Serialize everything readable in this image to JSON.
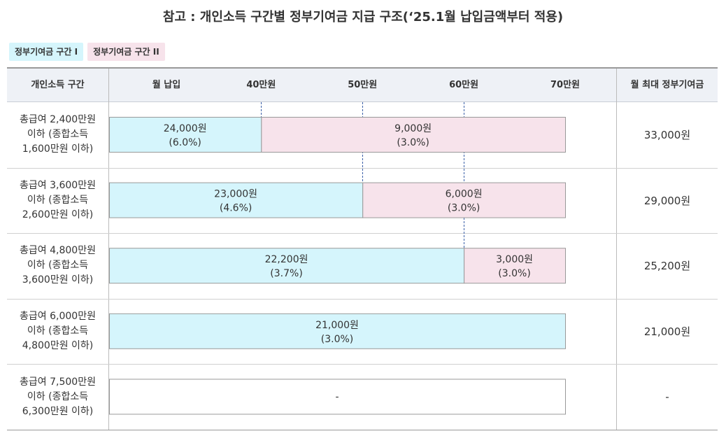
{
  "title": "참고 : 개인소득 구간별 정부기여금 지급 구조(‘25.1월 납입금액부터 적용)",
  "colors": {
    "tier1": "#d5f5fc",
    "tier2": "#f7e3eb",
    "none": "#ffffff",
    "border": "#999999"
  },
  "legend": [
    {
      "label": "정부기여금 구간 I",
      "color": "#d5f5fc"
    },
    {
      "label": "정부기여금 구간 II",
      "color": "#f7e3eb"
    }
  ],
  "header": {
    "income_band": "개인소득 구간",
    "monthly_payment": "월 납입",
    "max_contribution": "월 최대 정부기여금"
  },
  "chart_data": {
    "type": "bar",
    "title": "참고 : 개인소득 구간별 정부기여금 지급 구조(‘25.1월 납입금액부터 적용)",
    "xlabel": "월 납입",
    "ylabel": "개인소득 구간",
    "xlim": [
      25,
      70
    ],
    "xticks": [
      40,
      50,
      60,
      70
    ],
    "xtick_labels": [
      "40만원",
      "50만원",
      "60만원",
      "70만원"
    ],
    "rows": [
      {
        "label": "총급여 2,400만원\n이하 (종합소득\n1,600만원 이하)",
        "max": "33,000원",
        "segments": [
          {
            "tier": "tier1",
            "from": 25,
            "to": 40,
            "amount": "24,000원",
            "rate": "(6.0%)"
          },
          {
            "tier": "tier2",
            "from": 40,
            "to": 70,
            "amount": "9,000원",
            "rate": "(3.0%)"
          }
        ]
      },
      {
        "label": "총급여 3,600만원\n이하 (종합소득\n2,600만원 이하)",
        "max": "29,000원",
        "segments": [
          {
            "tier": "tier1",
            "from": 25,
            "to": 50,
            "amount": "23,000원",
            "rate": "(4.6%)"
          },
          {
            "tier": "tier2",
            "from": 50,
            "to": 70,
            "amount": "6,000원",
            "rate": "(3.0%)"
          }
        ]
      },
      {
        "label": "총급여 4,800만원\n이하 (종합소득\n3,600만원 이하)",
        "max": "25,200원",
        "segments": [
          {
            "tier": "tier1",
            "from": 25,
            "to": 60,
            "amount": "22,200원",
            "rate": "(3.7%)"
          },
          {
            "tier": "tier2",
            "from": 60,
            "to": 70,
            "amount": "3,000원",
            "rate": "(3.0%)"
          }
        ]
      },
      {
        "label": "총급여 6,000만원\n이하 (종합소득\n4,800만원 이하)",
        "max": "21,000원",
        "segments": [
          {
            "tier": "tier1",
            "from": 25,
            "to": 70,
            "amount": "21,000원",
            "rate": "(3.0%)"
          }
        ]
      },
      {
        "label": "총급여 7,500만원\n이하 (종합소득\n6,300만원 이하)",
        "max": "-",
        "segments": [
          {
            "tier": "none",
            "from": 25,
            "to": 70,
            "amount": "-",
            "rate": ""
          }
        ]
      }
    ]
  }
}
